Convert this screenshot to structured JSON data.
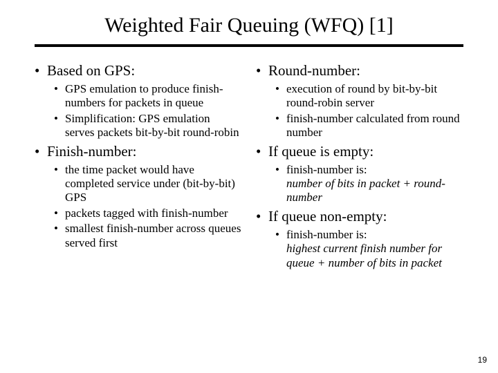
{
  "title": "Weighted Fair Queuing (WFQ) [1]",
  "page_number": "19",
  "left": {
    "h1": "Based on GPS:",
    "h1_sub": [
      "GPS emulation to produce finish-numbers for packets in queue",
      "Simplification: GPS emulation serves packets bit-by-bit round-robin"
    ],
    "h2": "Finish-number:",
    "h2_sub": [
      "the time packet would have completed service under (bit-by-bit) GPS",
      "packets tagged with finish-number",
      "smallest finish-number across queues served first"
    ]
  },
  "right": {
    "h1": "Round-number:",
    "h1_sub": [
      "execution of round by bit-by-bit round-robin server",
      "finish-number calculated from round number"
    ],
    "h2": "If queue is empty:",
    "h2_sub_a": "finish-number is:",
    "h2_sub_b": "number of bits in packet + round-number",
    "h3": "If queue non-empty:",
    "h3_sub_a": "finish-number is:",
    "h3_sub_b": "highest current finish number for queue + number of bits in packet"
  }
}
